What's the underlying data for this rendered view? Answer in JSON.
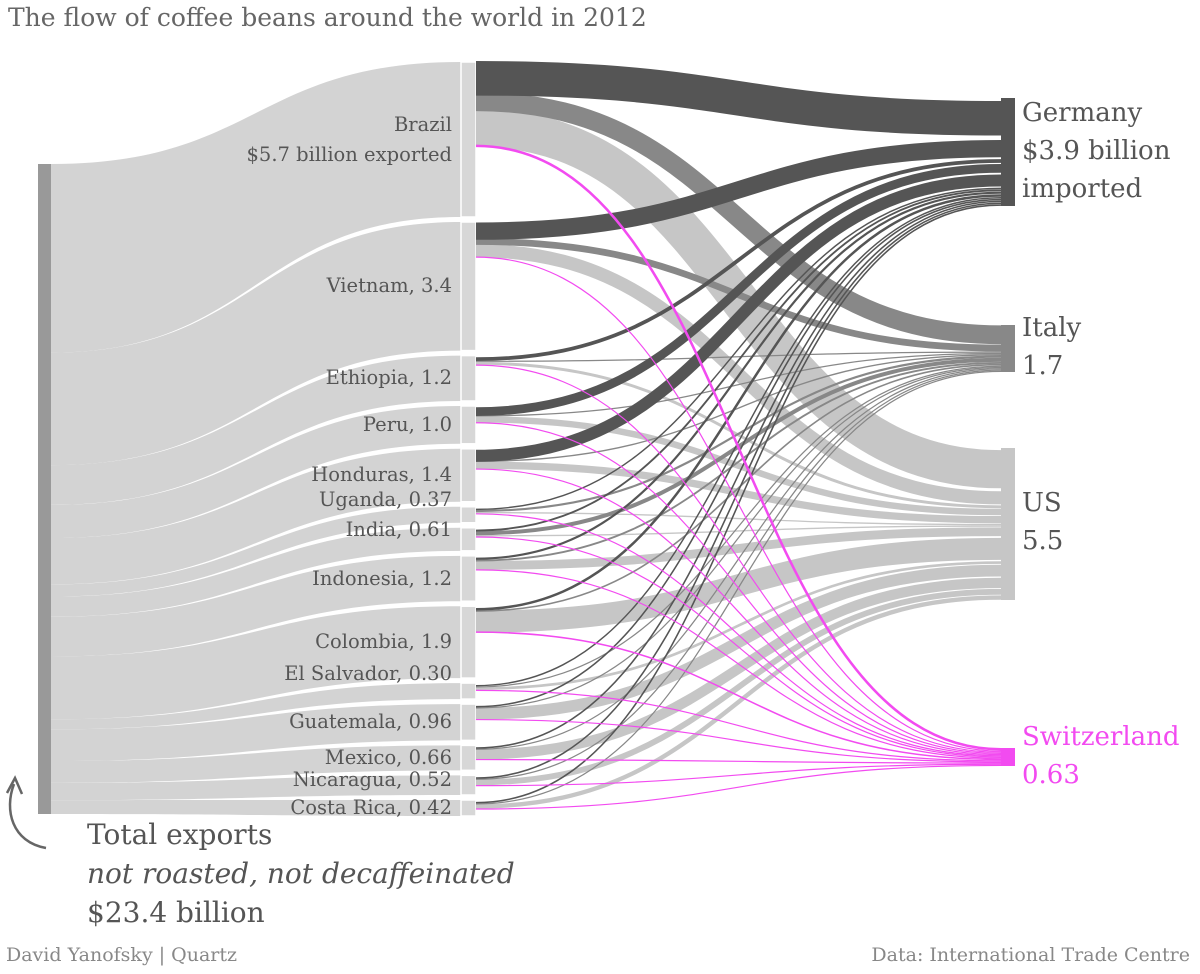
{
  "title": "The flow of coffee beans around the world in 2012",
  "credit": "David Yanofsky | Quartz",
  "source": "Data: International Trade Centre",
  "total": {
    "line1": "Total exports",
    "line2": "not roasted, not decaffeinated",
    "line3": "$23.4 billion"
  },
  "colors": {
    "Germany": "#555555",
    "Italy": "#888888",
    "US": "#c6c6c6",
    "Switzerland": "#f24bf0",
    "flow_base": "#d3d3d3",
    "total_bar": "#999999",
    "node": "#d7d7d7"
  },
  "chart_data": {
    "type": "sankey",
    "title": "The flow of coffee beans around the world in 2012",
    "unit": "billion USD",
    "total_exports": 23.4,
    "exporters": [
      {
        "name": "Brazil",
        "label_lines": [
          "Brazil",
          "$5.7 billion exported"
        ],
        "value": 5.7
      },
      {
        "name": "Vietnam",
        "label_lines": [
          "Vietnam, 3.4"
        ],
        "value": 3.4
      },
      {
        "name": "Ethiopia",
        "label_lines": [
          "Ethiopia, 1.2"
        ],
        "value": 1.2
      },
      {
        "name": "Peru",
        "label_lines": [
          "Peru, 1.0"
        ],
        "value": 1.0
      },
      {
        "name": "Honduras",
        "label_lines": [
          "Honduras, 1.4"
        ],
        "value": 1.4
      },
      {
        "name": "Uganda",
        "label_lines": [
          "Uganda, 0.37"
        ],
        "value": 0.37
      },
      {
        "name": "India",
        "label_lines": [
          "India, 0.61"
        ],
        "value": 0.61
      },
      {
        "name": "Indonesia",
        "label_lines": [
          "Indonesia, 1.2"
        ],
        "value": 1.2
      },
      {
        "name": "Colombia",
        "label_lines": [
          "Colombia, 1.9"
        ],
        "value": 1.9
      },
      {
        "name": "El Salvador",
        "label_lines": [
          "El Salvador, 0.30"
        ],
        "value": 0.3
      },
      {
        "name": "Guatemala",
        "label_lines": [
          "Guatemala, 0.96"
        ],
        "value": 0.96
      },
      {
        "name": "Mexico",
        "label_lines": [
          "Mexico, 0.66"
        ],
        "value": 0.66
      },
      {
        "name": "Nicaragua",
        "label_lines": [
          "Nicaragua, 0.52"
        ],
        "value": 0.52
      },
      {
        "name": "Costa Rica",
        "label_lines": [
          "Costa Rica, 0.42"
        ],
        "value": 0.42
      }
    ],
    "importers": [
      {
        "name": "Germany",
        "label_lines": [
          "Germany",
          "$3.9 billion",
          "imported"
        ],
        "value": 3.9
      },
      {
        "name": "Italy",
        "label_lines": [
          "Italy",
          "1.7"
        ],
        "value": 1.7
      },
      {
        "name": "US",
        "label_lines": [
          "US",
          "5.5"
        ],
        "value": 5.5
      },
      {
        "name": "Switzerland",
        "label_lines": [
          "Switzerland",
          "0.63"
        ],
        "value": 0.63
      }
    ],
    "flows": [
      {
        "from": "Brazil",
        "to": "Germany",
        "value": 1.1
      },
      {
        "from": "Brazil",
        "to": "Italy",
        "value": 0.7
      },
      {
        "from": "Brazil",
        "to": "US",
        "value": 1.3
      },
      {
        "from": "Brazil",
        "to": "Switzerland",
        "value": 0.1
      },
      {
        "from": "Vietnam",
        "to": "Germany",
        "value": 0.55
      },
      {
        "from": "Vietnam",
        "to": "Italy",
        "value": 0.25
      },
      {
        "from": "Vietnam",
        "to": "US",
        "value": 0.45
      },
      {
        "from": "Vietnam",
        "to": "Switzerland",
        "value": 0.02
      },
      {
        "from": "Ethiopia",
        "to": "Germany",
        "value": 0.12
      },
      {
        "from": "Ethiopia",
        "to": "Italy",
        "value": 0.04
      },
      {
        "from": "Ethiopia",
        "to": "US",
        "value": 0.1
      },
      {
        "from": "Ethiopia",
        "to": "Switzerland",
        "value": 0.02
      },
      {
        "from": "Peru",
        "to": "Germany",
        "value": 0.28
      },
      {
        "from": "Peru",
        "to": "Italy",
        "value": 0.04
      },
      {
        "from": "Peru",
        "to": "US",
        "value": 0.22
      },
      {
        "from": "Peru",
        "to": "Switzerland",
        "value": 0.02
      },
      {
        "from": "Honduras",
        "to": "Germany",
        "value": 0.38
      },
      {
        "from": "Honduras",
        "to": "Italy",
        "value": 0.05
      },
      {
        "from": "Honduras",
        "to": "US",
        "value": 0.25
      },
      {
        "from": "Honduras",
        "to": "Switzerland",
        "value": 0.02
      },
      {
        "from": "Uganda",
        "to": "Germany",
        "value": 0.03
      },
      {
        "from": "Uganda",
        "to": "Italy",
        "value": 0.08
      },
      {
        "from": "Uganda",
        "to": "US",
        "value": 0.03
      },
      {
        "from": "Uganda",
        "to": "Switzerland",
        "value": 0.01
      },
      {
        "from": "India",
        "to": "Germany",
        "value": 0.06
      },
      {
        "from": "India",
        "to": "Italy",
        "value": 0.15
      },
      {
        "from": "India",
        "to": "US",
        "value": 0.04
      },
      {
        "from": "India",
        "to": "Switzerland",
        "value": 0.01
      },
      {
        "from": "Indonesia",
        "to": "Germany",
        "value": 0.07
      },
      {
        "from": "Indonesia",
        "to": "Italy",
        "value": 0.07
      },
      {
        "from": "Indonesia",
        "to": "US",
        "value": 0.3
      },
      {
        "from": "Indonesia",
        "to": "Switzerland",
        "value": 0.02
      },
      {
        "from": "Colombia",
        "to": "Germany",
        "value": 0.08
      },
      {
        "from": "Colombia",
        "to": "Italy",
        "value": 0.06
      },
      {
        "from": "Colombia",
        "to": "US",
        "value": 0.75
      },
      {
        "from": "Colombia",
        "to": "Switzerland",
        "value": 0.06
      },
      {
        "from": "El Salvador",
        "to": "Germany",
        "value": 0.03
      },
      {
        "from": "El Salvador",
        "to": "Italy",
        "value": 0.01
      },
      {
        "from": "El Salvador",
        "to": "US",
        "value": 0.09
      },
      {
        "from": "El Salvador",
        "to": "Switzerland",
        "value": 0.01
      },
      {
        "from": "Guatemala",
        "to": "Germany",
        "value": 0.05
      },
      {
        "from": "Guatemala",
        "to": "Italy",
        "value": 0.02
      },
      {
        "from": "Guatemala",
        "to": "US",
        "value": 0.4
      },
      {
        "from": "Guatemala",
        "to": "Switzerland",
        "value": 0.01
      },
      {
        "from": "Mexico",
        "to": "Germany",
        "value": 0.05
      },
      {
        "from": "Mexico",
        "to": "Italy",
        "value": 0.01
      },
      {
        "from": "Mexico",
        "to": "US",
        "value": 0.35
      },
      {
        "from": "Mexico",
        "to": "Switzerland",
        "value": 0.01
      },
      {
        "from": "Nicaragua",
        "to": "Germany",
        "value": 0.05
      },
      {
        "from": "Nicaragua",
        "to": "Italy",
        "value": 0.01
      },
      {
        "from": "Nicaragua",
        "to": "US",
        "value": 0.2
      },
      {
        "from": "Nicaragua",
        "to": "Switzerland",
        "value": 0.01
      },
      {
        "from": "Costa Rica",
        "to": "Germany",
        "value": 0.05
      },
      {
        "from": "Costa Rica",
        "to": "Italy",
        "value": 0.01
      },
      {
        "from": "Costa Rica",
        "to": "US",
        "value": 0.15
      },
      {
        "from": "Costa Rica",
        "to": "Switzerland",
        "value": 0.01
      }
    ]
  }
}
